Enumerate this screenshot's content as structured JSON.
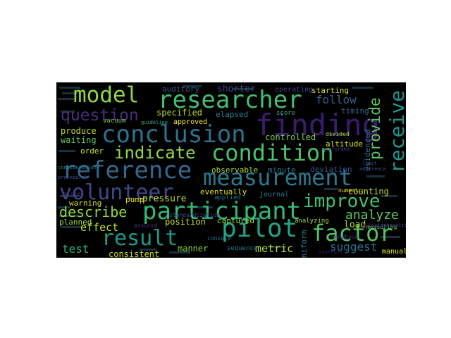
{
  "wordcloud": {
    "words": [
      {
        "text": "model",
        "color": "#8fd744"
      },
      {
        "text": "researcher",
        "color": "#43bf71"
      },
      {
        "text": "finding",
        "color": "#3b1c6c"
      },
      {
        "text": "receive",
        "color": "#20928c"
      },
      {
        "text": "question",
        "color": "#472f7d"
      },
      {
        "text": "conclusion",
        "color": "#2c728e"
      },
      {
        "text": "provide",
        "color": "#5cc863"
      },
      {
        "text": "indicate",
        "color": "#8fd744"
      },
      {
        "text": "condition",
        "color": "#4ac16d"
      },
      {
        "text": "reference",
        "color": "#31688e"
      },
      {
        "text": "measurement",
        "color": "#2a788e"
      },
      {
        "text": "volunteer",
        "color": "#3f4788"
      },
      {
        "text": "improve",
        "color": "#44bf70"
      },
      {
        "text": "participant",
        "color": "#35b779"
      },
      {
        "text": "describe",
        "color": "#90d743"
      },
      {
        "text": "analyze",
        "color": "#5ec962"
      },
      {
        "text": "pilot",
        "color": "#21a585"
      },
      {
        "text": "factor",
        "color": "#50c46a"
      },
      {
        "text": "result",
        "color": "#1f9a8a"
      },
      {
        "text": "suggest",
        "color": "#2e6e8e"
      },
      {
        "text": "test",
        "color": "#2db27d"
      },
      {
        "text": "metric",
        "color": "#b5de2b"
      },
      {
        "text": "effect",
        "color": "#c2df23"
      },
      {
        "text": "follow",
        "color": "#35608d"
      },
      {
        "text": "shorter",
        "color": "#3e4a89"
      },
      {
        "text": "auditory",
        "color": "#3a548c"
      },
      {
        "text": "operating",
        "color": "#414487"
      },
      {
        "text": "starting",
        "color": "#d8e219"
      },
      {
        "text": "timing",
        "color": "#31688e"
      },
      {
        "text": "specified",
        "color": "#b5de2b"
      },
      {
        "text": "elapsed",
        "color": "#287d8e"
      },
      {
        "text": "score",
        "color": "#31b57b"
      },
      {
        "text": "produce",
        "color": "#bddf26"
      },
      {
        "text": "waiting",
        "color": "#5ec962"
      },
      {
        "text": "vacuum",
        "color": "#6ccd5a"
      },
      {
        "text": "approved",
        "color": "#fde725"
      },
      {
        "text": "controlled",
        "color": "#7ad151"
      },
      {
        "text": "divided",
        "color": "#a2da37"
      },
      {
        "text": "altitude",
        "color": "#d5e21a"
      },
      {
        "text": "order",
        "color": "#c8e020"
      },
      {
        "text": "evidenced",
        "color": "#2c728e"
      },
      {
        "text": "observable",
        "color": "#a8db34"
      },
      {
        "text": "minute",
        "color": "#2a788e"
      },
      {
        "text": "deviation",
        "color": "#3b528b"
      },
      {
        "text": "eventually",
        "color": "#dde318"
      },
      {
        "text": "journal",
        "color": "#2a788e"
      },
      {
        "text": "counting",
        "color": "#c2df23"
      },
      {
        "text": "warning",
        "color": "#d2e21b"
      },
      {
        "text": "pump",
        "color": "#e5e419"
      },
      {
        "text": "pressure",
        "color": "#bddf26"
      },
      {
        "text": "load",
        "color": "#b2dd2d"
      },
      {
        "text": "position",
        "color": "#c0df25"
      },
      {
        "text": "captured",
        "color": "#a2da37"
      },
      {
        "text": "planned",
        "color": "#9bd93c"
      },
      {
        "text": "consistent",
        "color": "#cde11d"
      },
      {
        "text": "manner",
        "color": "#7fd34e"
      },
      {
        "text": "sequence",
        "color": "#2a788e"
      },
      {
        "text": "manual",
        "color": "#e5e419"
      },
      {
        "text": "numeric",
        "color": "#ece51b"
      },
      {
        "text": "measuring",
        "color": "#5ec962"
      },
      {
        "text": "uniform",
        "color": "#2a788e"
      },
      {
        "text": "analyzing",
        "color": "#aadc32"
      },
      {
        "text": "applied",
        "color": "#2c728e"
      },
      {
        "text": "consideration",
        "color": "#26828e"
      },
      {
        "text": "guideline",
        "color": "#2db27d"
      },
      {
        "text": "standardization",
        "color": "#3e4a89"
      },
      {
        "text": "assured",
        "color": "#463480"
      },
      {
        "text": "console",
        "color": "#31688e"
      },
      {
        "text": "initiated",
        "color": "#482576"
      },
      {
        "text": "interaction",
        "color": "#3e4a89"
      },
      {
        "text": "handbook",
        "color": "#472d7b"
      },
      {
        "text": "missed",
        "color": "#46337f"
      },
      {
        "text": "procedural",
        "color": "#3b528b"
      },
      {
        "text": "limit",
        "color": "#3a548c"
      },
      {
        "text": "adherence",
        "color": "#3e4989"
      },
      {
        "text": "confirmed",
        "color": "#433e85"
      },
      {
        "text": "assessed",
        "color": "#481a6c"
      }
    ]
  }
}
